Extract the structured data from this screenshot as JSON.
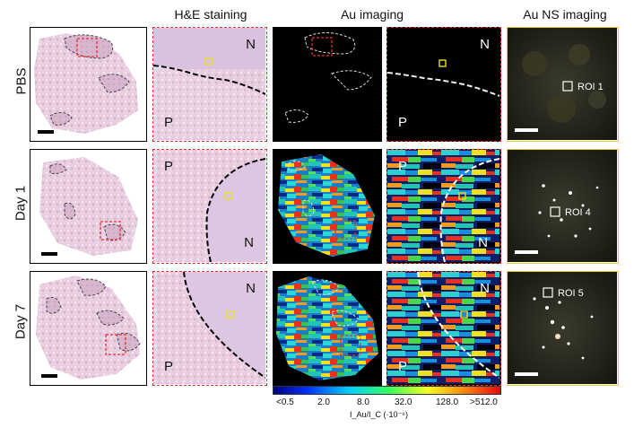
{
  "headers": {
    "he": "H&E staining",
    "au": "Au imaging",
    "ns": "Au NS imaging"
  },
  "rows": [
    {
      "label": "PBS",
      "roi": "ROI 1"
    },
    {
      "label": "Day 1",
      "roi": "ROI 4"
    },
    {
      "label": "Day 7",
      "roi": "ROI 5"
    }
  ],
  "region_labels": {
    "necrotic": "N",
    "parenchyma": "P"
  },
  "colorbar": {
    "ticks": [
      "<0.5",
      "2.0",
      "8.0",
      "32.0",
      "128.0",
      ">512.0"
    ],
    "label": "I_Au/I_C (·10⁻⁶)"
  },
  "colors": {
    "he_border": "#000000",
    "zoom_border": "#e8322f",
    "ns_border": "#e8d21e",
    "roi_marker": "#e8e020"
  }
}
